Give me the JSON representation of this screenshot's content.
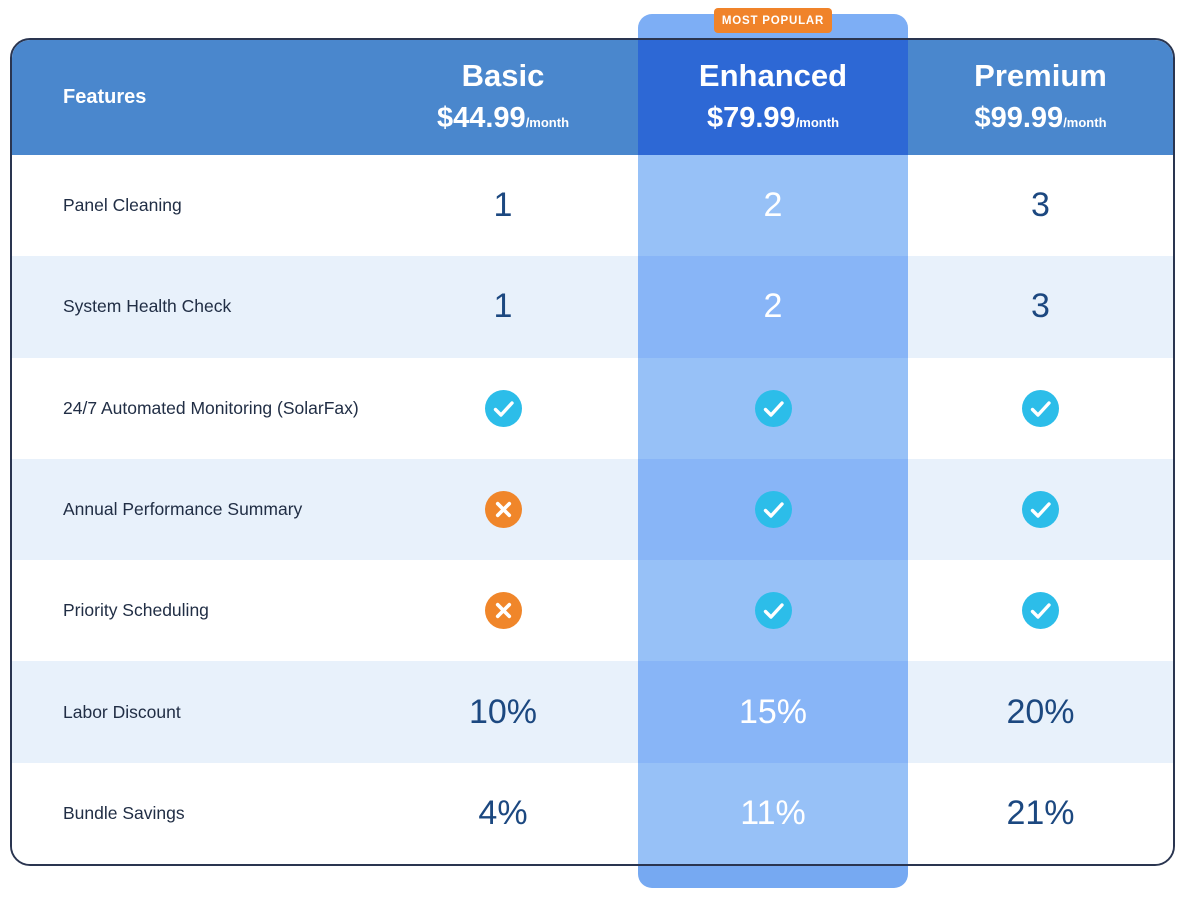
{
  "badge": {
    "label": "MOST POPULAR"
  },
  "table": {
    "features_header": "Features",
    "plans": [
      {
        "name": "Basic",
        "price": "$44.99",
        "period": "/month",
        "highlighted": false
      },
      {
        "name": "Enhanced",
        "price": "$79.99",
        "period": "/month",
        "highlighted": true
      },
      {
        "name": "Premium",
        "price": "$99.99",
        "period": "/month",
        "highlighted": false
      }
    ],
    "rows": [
      {
        "feature": "Panel Cleaning",
        "values": [
          "1",
          "2",
          "3"
        ]
      },
      {
        "feature": "System Health Check",
        "values": [
          "1",
          "2",
          "3"
        ]
      },
      {
        "feature": "24/7 Automated Monitoring (SolarFax)",
        "values": [
          "check",
          "check",
          "check"
        ]
      },
      {
        "feature": "Annual Performance Summary",
        "values": [
          "cross",
          "check",
          "check"
        ]
      },
      {
        "feature": "Priority Scheduling",
        "values": [
          "cross",
          "check",
          "check"
        ]
      },
      {
        "feature": "Labor Discount",
        "values": [
          "10%",
          "15%",
          "20%"
        ]
      },
      {
        "feature": "Bundle Savings",
        "values": [
          "4%",
          "11%",
          "21%"
        ]
      }
    ]
  },
  "colors": {
    "badge": "#F0832A",
    "header-blue": "#4A87CD",
    "header-dark": "#2D68D5",
    "strip-top": "#7DAEF5",
    "strip-bottom": "#76A9F2",
    "enh-on-white": "#97C1F7",
    "enh-on-alt": "#88B5F7",
    "alt-row": "#E8F1FB",
    "card-border": "#2A3550",
    "label-text": "#212E45",
    "value-text": "#1C4880",
    "check-icon": "#2CBDE9",
    "cross-icon": "#F0862A"
  }
}
